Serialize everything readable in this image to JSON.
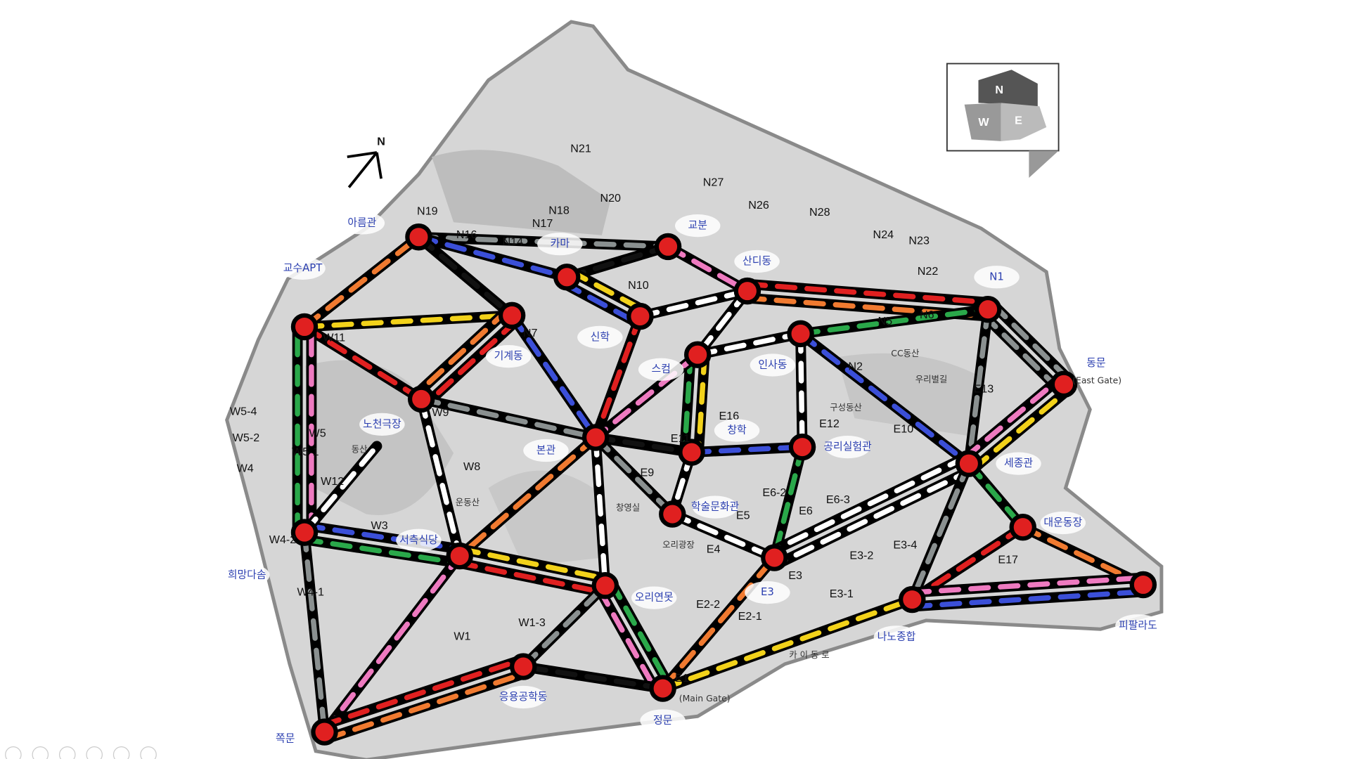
{
  "compass": "N",
  "minimap": [
    "N",
    "W",
    "E"
  ],
  "building_labels": [
    "N21",
    "N20",
    "N19",
    "N18",
    "N17",
    "N16",
    "N14",
    "N27",
    "N26",
    "N28",
    "N24",
    "N23",
    "N22",
    "N6",
    "N5",
    "N2",
    "N10",
    "N7",
    "W11",
    "W5",
    "W5-4",
    "W5-2",
    "W5-1",
    "W4",
    "W12",
    "W3",
    "W4-2",
    "W4-1",
    "W8",
    "W9",
    "W1",
    "W1-3",
    "E1",
    "E2-2",
    "E2-1",
    "E3",
    "E3-2",
    "E3-4",
    "E3-1",
    "E4",
    "E5",
    "E6",
    "E6-2",
    "E6-3",
    "E9",
    "E11",
    "E12",
    "E10",
    "E13",
    "E17",
    "E16"
  ],
  "place_labels": [
    "CC동산",
    "우리별길",
    "구성동산",
    "카 이 동 로",
    "(Main Gate)",
    "(East Gate)",
    "동산",
    "창영실",
    "오리광장",
    "운동산"
  ],
  "handwritten_labels": [
    "아름관",
    "교수APT",
    "카마",
    "교분",
    "산디동",
    "신학",
    "기계동",
    "스컴",
    "인사동",
    "창학",
    "공리실험관",
    "세종관",
    "동문",
    "노천극장",
    "본관",
    "서측식당",
    "희망다솜",
    "쪽문",
    "응용공학동",
    "정문",
    "오리연못",
    "학술문화관",
    "E3",
    "나노종합",
    "대운동장",
    "피팔라도",
    "N1"
  ]
}
